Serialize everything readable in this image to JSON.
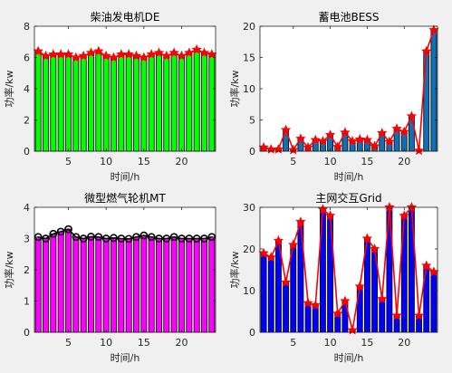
{
  "figure": {
    "background": "#f0f0f0"
  },
  "chart_data": [
    {
      "type": "bar",
      "title": "柴油发电机DE",
      "xlabel": "时间/h",
      "ylabel": "功率/kw",
      "categories": [
        1,
        2,
        3,
        4,
        5,
        6,
        7,
        8,
        9,
        10,
        11,
        12,
        13,
        14,
        15,
        16,
        17,
        18,
        19,
        20,
        21,
        22,
        23,
        24
      ],
      "xlim": [
        0.5,
        24.5
      ],
      "xticks": [
        5,
        10,
        15,
        20
      ],
      "ylim": [
        0,
        8
      ],
      "yticks": [
        0,
        2,
        4,
        6,
        8
      ],
      "bar_color": "#00ff00",
      "marker_color": "#ff0000",
      "marker": "star",
      "series": [
        {
          "values": [
            6.4,
            6.1,
            6.2,
            6.2,
            6.2,
            6.0,
            6.1,
            6.3,
            6.4,
            6.1,
            6.0,
            6.2,
            6.2,
            6.1,
            6.0,
            6.2,
            6.3,
            6.1,
            6.3,
            6.1,
            6.3,
            6.5,
            6.3,
            6.2
          ]
        }
      ]
    },
    {
      "type": "bar",
      "title": "蓄电池BESS",
      "xlabel": "时间/h",
      "ylabel": "功率/kw",
      "categories": [
        1,
        2,
        3,
        4,
        5,
        6,
        7,
        8,
        9,
        10,
        11,
        12,
        13,
        14,
        15,
        16,
        17,
        18,
        19,
        20,
        21,
        22,
        23,
        24
      ],
      "xlim": [
        0.5,
        24.5
      ],
      "xticks": [
        5,
        10,
        15,
        20
      ],
      "ylim": [
        0,
        20
      ],
      "yticks": [
        0,
        5,
        10,
        15,
        20
      ],
      "bar_color": "#0f70b8",
      "marker_color": "#ff0000",
      "marker": "star",
      "series": [
        {
          "values": [
            0.6,
            0.3,
            0.3,
            3.4,
            0.2,
            2.0,
            0.6,
            1.8,
            1.6,
            2.6,
            0.7,
            3.0,
            1.6,
            1.9,
            1.8,
            0.8,
            2.9,
            1.5,
            3.6,
            3.1,
            5.6,
            0.1,
            16.0,
            19.4
          ]
        }
      ]
    },
    {
      "type": "bar",
      "title": "微型燃气轮机MT",
      "xlabel": "时间/h",
      "ylabel": "功率/kw",
      "categories": [
        1,
        2,
        3,
        4,
        5,
        6,
        7,
        8,
        9,
        10,
        11,
        12,
        13,
        14,
        15,
        16,
        17,
        18,
        19,
        20,
        21,
        22,
        23,
        24
      ],
      "xlim": [
        0.5,
        24.5
      ],
      "xticks": [
        5,
        10,
        15,
        20
      ],
      "ylim": [
        0,
        4
      ],
      "yticks": [
        0,
        1,
        2,
        3,
        4
      ],
      "bar_color": "#ff00ff",
      "marker_color": "#000000",
      "marker": "circle",
      "series": [
        {
          "values": [
            3.05,
            3.0,
            3.15,
            3.22,
            3.3,
            3.05,
            3.0,
            3.06,
            3.05,
            3.0,
            3.02,
            3.0,
            2.99,
            3.05,
            3.1,
            3.05,
            3.0,
            3.0,
            3.05,
            3.0,
            3.0,
            3.0,
            3.0,
            3.05
          ]
        }
      ]
    },
    {
      "type": "bar",
      "title": "主网交互Grid",
      "xlabel": "时间/h",
      "ylabel": "功率/kw",
      "categories": [
        1,
        2,
        3,
        4,
        5,
        6,
        7,
        8,
        9,
        10,
        11,
        12,
        13,
        14,
        15,
        16,
        17,
        18,
        19,
        20,
        21,
        22,
        23,
        24
      ],
      "xlim": [
        0.5,
        24.5
      ],
      "xticks": [
        5,
        10,
        15,
        20
      ],
      "ylim": [
        0,
        30
      ],
      "yticks": [
        0,
        10,
        20,
        30
      ],
      "bar_color": "#0000ff",
      "marker_color": "#ff0000",
      "marker": "star",
      "series": [
        {
          "values": [
            19.0,
            18.0,
            22.0,
            12.0,
            21.0,
            26.5,
            7.0,
            6.5,
            29.5,
            28.0,
            4.5,
            7.5,
            0.5,
            11.0,
            22.5,
            20.0,
            8.0,
            30.0,
            4.0,
            28.0,
            30.0,
            4.0,
            16.0,
            14.5
          ]
        }
      ]
    }
  ]
}
